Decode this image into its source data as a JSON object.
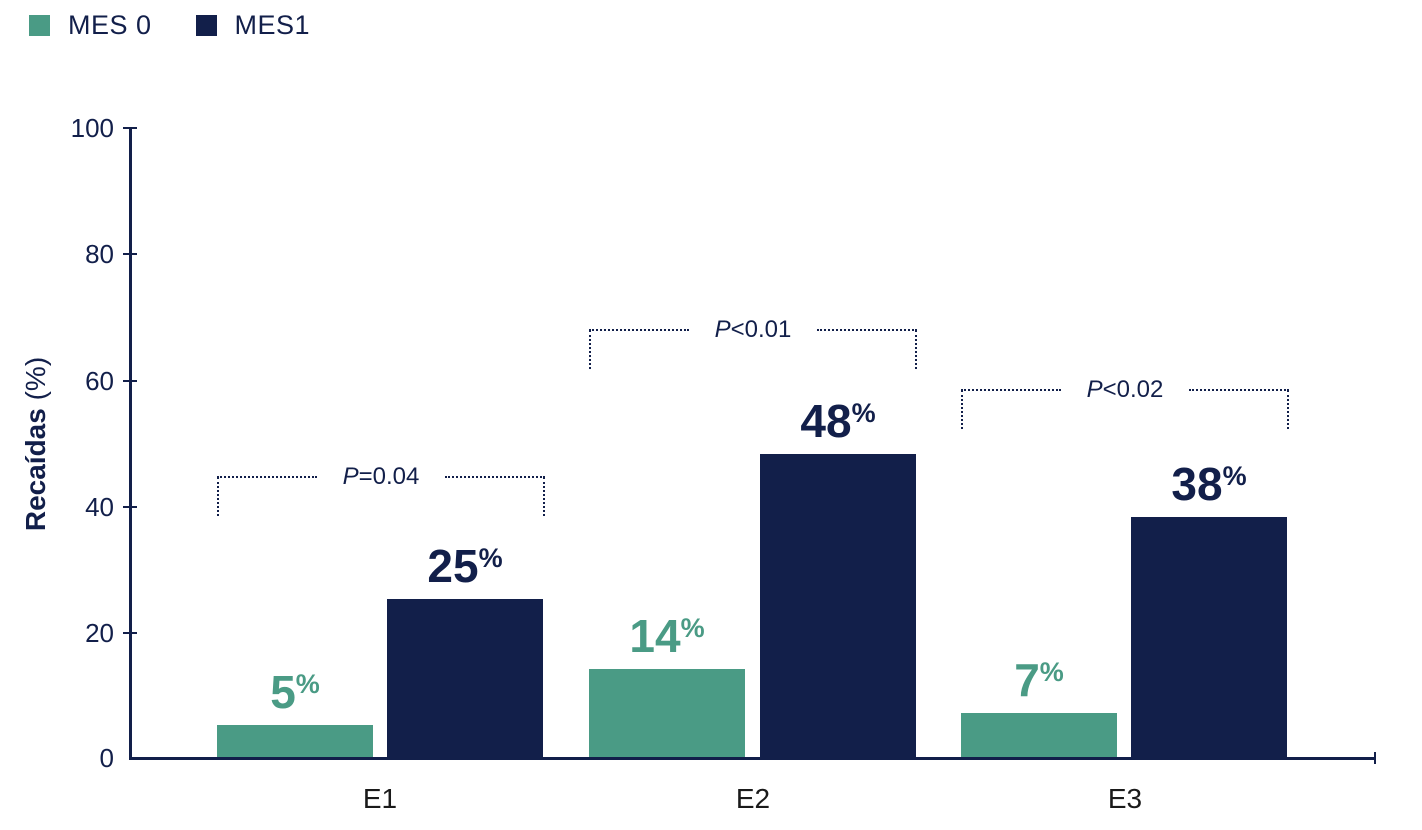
{
  "legend": {
    "items": [
      {
        "label": "MES 0",
        "color": "#4A9B85"
      },
      {
        "label": "MES1",
        "color": "#121F4A"
      }
    ]
  },
  "chart_data": {
    "type": "bar",
    "title": "",
    "ylabel": "Recaídas (%)",
    "ylabel_bold_part": "Recaídas",
    "ylabel_unit_part": "(%)",
    "ylim": [
      0,
      100
    ],
    "yticks": [
      "100",
      "80",
      "60",
      "40",
      "20",
      "0"
    ],
    "unit": "%",
    "categories": [
      "E1",
      "E2",
      "E3"
    ],
    "series": [
      {
        "name": "MES 0",
        "color": "#4A9B85",
        "values": [
          5,
          14,
          7
        ]
      },
      {
        "name": "MES1",
        "color": "#121F4A",
        "values": [
          25,
          48,
          38
        ]
      }
    ],
    "annotations": [
      {
        "group": "E1",
        "p_label": "P=0.04"
      },
      {
        "group": "E2",
        "p_label": "P<0.01"
      },
      {
        "group": "E3",
        "p_label": "P<0.02"
      }
    ],
    "legend_position": "top-left",
    "grid": false
  }
}
